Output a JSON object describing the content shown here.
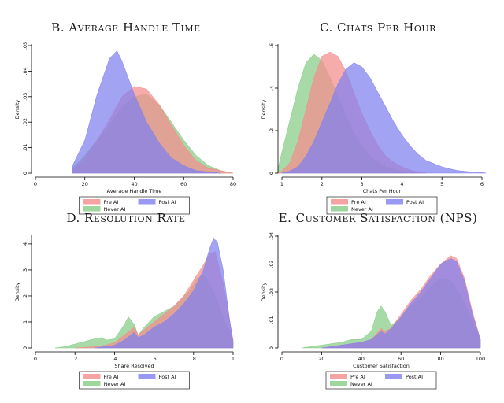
{
  "legend": {
    "pre_ai": "Pre AI",
    "post_ai": "Post AI",
    "never_ai": "Never AI"
  },
  "colors": {
    "pre_ai": "#f48c8c",
    "post_ai": "#8080f0",
    "never_ai": "#86cc86",
    "overlap": "#5f7278"
  },
  "chart_data": [
    {
      "id": "aht",
      "type": "area",
      "title": "B. Average Handle Time",
      "xlabel": "Average Handle Time",
      "ylabel": "Density",
      "xlim": [
        0,
        80
      ],
      "ylim": [
        0,
        0.05
      ],
      "xticks": [
        0,
        20,
        40,
        60,
        80
      ],
      "xtick_labels": [
        "0",
        "20",
        "40",
        "60",
        "80"
      ],
      "yticks": [
        0,
        0.01,
        0.02,
        0.03,
        0.04,
        0.05
      ],
      "ytick_labels": [
        "0",
        ".01",
        ".02",
        ".03",
        ".04",
        ".05"
      ],
      "series": [
        {
          "name": "Never AI",
          "x": [
            15,
            20,
            25,
            30,
            35,
            40,
            45,
            50,
            55,
            60,
            65,
            70,
            75,
            80
          ],
          "y": [
            0.002,
            0.007,
            0.013,
            0.019,
            0.026,
            0.03,
            0.031,
            0.027,
            0.02,
            0.013,
            0.007,
            0.003,
            0.001,
            0
          ]
        },
        {
          "name": "Pre AI",
          "x": [
            15,
            20,
            25,
            30,
            35,
            40,
            45,
            50,
            55,
            60,
            65,
            70,
            75,
            80
          ],
          "y": [
            0.001,
            0.006,
            0.013,
            0.021,
            0.03,
            0.034,
            0.033,
            0.027,
            0.019,
            0.011,
            0.005,
            0.002,
            0.001,
            0
          ]
        },
        {
          "name": "Post AI",
          "x": [
            15,
            20,
            25,
            30,
            33,
            35,
            40,
            45,
            50,
            55,
            60,
            65,
            70,
            75
          ],
          "y": [
            0.003,
            0.013,
            0.031,
            0.045,
            0.048,
            0.044,
            0.031,
            0.02,
            0.012,
            0.006,
            0.003,
            0.001,
            0.0005,
            0
          ]
        }
      ]
    },
    {
      "id": "cph",
      "type": "area",
      "title": "C. Chats Per Hour",
      "xlabel": "Chats Per Hour",
      "ylabel": "Density",
      "xlim": [
        1,
        6
      ],
      "ylim": [
        0,
        0.6
      ],
      "xticks": [
        1,
        2,
        3,
        4,
        5,
        6
      ],
      "xtick_labels": [
        "1",
        "2",
        "3",
        "4",
        "5",
        "6"
      ],
      "yticks": [
        0,
        0.2,
        0.4,
        0.6
      ],
      "ytick_labels": [
        "0",
        ".2",
        ".4",
        ".6"
      ],
      "series": [
        {
          "name": "Never AI",
          "x": [
            0.9,
            1.0,
            1.2,
            1.4,
            1.6,
            1.8,
            2.0,
            2.2,
            2.4,
            2.6,
            2.8,
            3.0,
            3.2,
            3.4,
            3.6,
            3.8,
            4.0,
            4.2,
            4.4
          ],
          "y": [
            0.02,
            0.1,
            0.25,
            0.4,
            0.52,
            0.56,
            0.53,
            0.45,
            0.36,
            0.27,
            0.19,
            0.13,
            0.08,
            0.05,
            0.03,
            0.02,
            0.01,
            0.005,
            0
          ]
        },
        {
          "name": "Pre AI",
          "x": [
            0.9,
            1.0,
            1.2,
            1.4,
            1.6,
            1.8,
            2.0,
            2.2,
            2.4,
            2.6,
            2.8,
            3.0,
            3.2,
            3.4,
            3.6,
            3.8,
            4.0,
            4.2,
            4.4,
            4.6
          ],
          "y": [
            0,
            0.01,
            0.05,
            0.15,
            0.3,
            0.45,
            0.55,
            0.57,
            0.55,
            0.48,
            0.38,
            0.28,
            0.2,
            0.13,
            0.08,
            0.05,
            0.03,
            0.015,
            0.005,
            0
          ]
        },
        {
          "name": "Post AI",
          "x": [
            1.0,
            1.2,
            1.4,
            1.6,
            1.8,
            2.0,
            2.2,
            2.4,
            2.6,
            2.8,
            3.0,
            3.2,
            3.4,
            3.6,
            3.8,
            4.0,
            4.2,
            4.4,
            4.6,
            4.8,
            5.0,
            5.2,
            5.4,
            5.6,
            5.8,
            6.0,
            6.1
          ],
          "y": [
            0,
            0.01,
            0.03,
            0.08,
            0.15,
            0.24,
            0.33,
            0.42,
            0.49,
            0.52,
            0.5,
            0.45,
            0.38,
            0.31,
            0.24,
            0.18,
            0.13,
            0.09,
            0.06,
            0.045,
            0.03,
            0.02,
            0.012,
            0.008,
            0.005,
            0.003,
            0
          ]
        }
      ]
    },
    {
      "id": "res",
      "type": "area",
      "title": "D. Resolution Rate",
      "xlabel": "Share Resolved",
      "ylabel": "Density",
      "xlim": [
        0,
        1
      ],
      "ylim": [
        0,
        4.3
      ],
      "xticks": [
        0,
        0.2,
        0.4,
        0.6,
        0.8,
        1
      ],
      "xtick_labels": [
        "0",
        ".2",
        ".4",
        ".6",
        ".8",
        "1"
      ],
      "yticks": [
        0,
        1,
        2,
        3,
        4
      ],
      "ytick_labels": [
        "0",
        "1",
        "2",
        "3",
        "4"
      ],
      "series": [
        {
          "name": "Never AI",
          "x": [
            0.1,
            0.15,
            0.2,
            0.25,
            0.3,
            0.33,
            0.36,
            0.4,
            0.45,
            0.47,
            0.5,
            0.52,
            0.55,
            0.6,
            0.65,
            0.7,
            0.75,
            0.78,
            0.82,
            0.85,
            0.88,
            0.92,
            0.96,
            1.0
          ],
          "y": [
            0,
            0.05,
            0.15,
            0.25,
            0.35,
            0.4,
            0.3,
            0.35,
            0.9,
            1.2,
            0.9,
            0.5,
            0.8,
            1.2,
            1.4,
            1.6,
            2.0,
            2.2,
            2.7,
            2.8,
            2.5,
            1.8,
            1.0,
            0.3
          ]
        },
        {
          "name": "Pre AI",
          "x": [
            0.2,
            0.25,
            0.3,
            0.35,
            0.4,
            0.45,
            0.5,
            0.52,
            0.55,
            0.6,
            0.65,
            0.7,
            0.75,
            0.8,
            0.85,
            0.88,
            0.91,
            0.95,
            1.0
          ],
          "y": [
            0,
            0.02,
            0.05,
            0.1,
            0.2,
            0.5,
            0.8,
            0.5,
            0.7,
            1.0,
            1.3,
            1.6,
            2.0,
            2.6,
            3.2,
            3.6,
            3.7,
            2.5,
            0.3
          ]
        },
        {
          "name": "Post AI",
          "x": [
            0.3,
            0.35,
            0.4,
            0.45,
            0.5,
            0.52,
            0.55,
            0.6,
            0.65,
            0.7,
            0.75,
            0.8,
            0.85,
            0.88,
            0.9,
            0.92,
            0.95,
            0.98,
            1.0
          ],
          "y": [
            0,
            0.05,
            0.1,
            0.3,
            0.6,
            0.4,
            0.5,
            0.8,
            1.0,
            1.3,
            1.7,
            2.2,
            3.0,
            3.8,
            4.2,
            4.1,
            3.0,
            1.2,
            0.2
          ]
        }
      ]
    },
    {
      "id": "nps",
      "type": "area",
      "title": "E. Customer Satisfaction (NPS)",
      "xlabel": "Customer Satisfaction",
      "ylabel": "Density",
      "xlim": [
        0,
        100
      ],
      "ylim": [
        0,
        0.04
      ],
      "xticks": [
        0,
        20,
        40,
        60,
        80,
        100
      ],
      "xtick_labels": [
        "0",
        "20",
        "40",
        "60",
        "80",
        "100"
      ],
      "yticks": [
        0,
        0.01,
        0.02,
        0.03,
        0.04
      ],
      "ytick_labels": [
        "0",
        ".01",
        ".02",
        ".03",
        ".04"
      ],
      "series": [
        {
          "name": "Never AI",
          "x": [
            10,
            20,
            30,
            35,
            40,
            45,
            48,
            50,
            52,
            55,
            60,
            65,
            70,
            75,
            80,
            85,
            90,
            95,
            100
          ],
          "y": [
            0,
            0.001,
            0.002,
            0.003,
            0.003,
            0.006,
            0.013,
            0.015,
            0.013,
            0.008,
            0.011,
            0.015,
            0.018,
            0.022,
            0.025,
            0.024,
            0.019,
            0.011,
            0.003
          ]
        },
        {
          "name": "Pre AI",
          "x": [
            20,
            30,
            40,
            45,
            50,
            52,
            55,
            60,
            65,
            70,
            75,
            80,
            85,
            88,
            92,
            96,
            100
          ],
          "y": [
            0,
            0.001,
            0.002,
            0.003,
            0.007,
            0.006,
            0.007,
            0.012,
            0.017,
            0.021,
            0.026,
            0.03,
            0.033,
            0.032,
            0.025,
            0.013,
            0.003
          ]
        },
        {
          "name": "Post AI",
          "x": [
            20,
            30,
            40,
            45,
            50,
            52,
            55,
            60,
            65,
            70,
            75,
            80,
            85,
            88,
            92,
            96,
            100
          ],
          "y": [
            0,
            0.001,
            0.002,
            0.003,
            0.006,
            0.005,
            0.007,
            0.011,
            0.016,
            0.02,
            0.025,
            0.03,
            0.032,
            0.031,
            0.024,
            0.012,
            0.003
          ]
        }
      ]
    }
  ]
}
